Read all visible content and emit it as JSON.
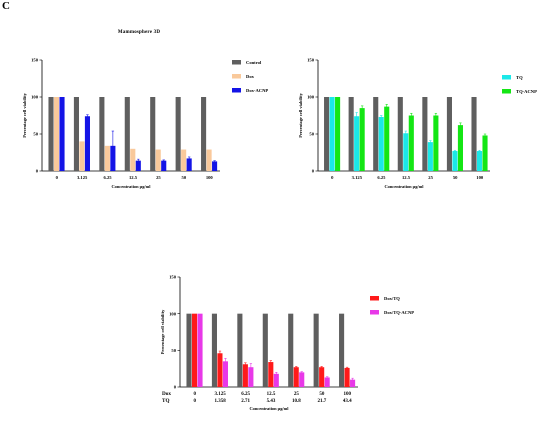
{
  "panel_label": "C",
  "title": "Mammosphere 3D",
  "colors": {
    "Control": "#5f5f5f",
    "Dox": "#f9c99b",
    "Dox-ACNP": "#1414e6",
    "TQ": "#1be8e8",
    "TQ-ACNP": "#14e614",
    "Dox/TQ": "#ff1a1a",
    "Dox/TQ-ACNP": "#e838e8"
  },
  "chart_data": [
    {
      "type": "bar",
      "categories": [
        "0",
        "3.125",
        "6.25",
        "12.5",
        "25",
        "50",
        "100"
      ],
      "ylim": [
        0,
        150
      ],
      "yticks": [
        0,
        50,
        100,
        150
      ],
      "ylabel": "Percentage cell viability",
      "xlabel": "Concentration µg/ml",
      "legend": [
        "Control",
        "Dox",
        "Dox-ACNP"
      ],
      "legend_position": "right",
      "series": [
        {
          "name": "Control",
          "values": [
            100,
            100,
            100,
            100,
            100,
            100,
            100
          ],
          "errors": [
            0,
            0,
            0,
            0,
            0,
            0,
            0
          ]
        },
        {
          "name": "Dox",
          "values": [
            100,
            40,
            34,
            30,
            29,
            29,
            29
          ],
          "errors": [
            0,
            0,
            0,
            0,
            0,
            0,
            0
          ]
        },
        {
          "name": "Dox-ACNP",
          "values": [
            100,
            74,
            34,
            14,
            14,
            17,
            13
          ],
          "errors": [
            0,
            2,
            20,
            2,
            1,
            2,
            1
          ]
        }
      ]
    },
    {
      "type": "bar",
      "categories": [
        "0",
        "3.125",
        "6.25",
        "12.5",
        "25",
        "50",
        "100"
      ],
      "ylim": [
        0,
        150
      ],
      "yticks": [
        0,
        50,
        100,
        150
      ],
      "ylabel": "Percentage cell viability",
      "xlabel": "Concentration µg/ml",
      "legend": [
        "TQ",
        "TQ-ACNP"
      ],
      "legend_position": "right",
      "series": [
        {
          "name": "Control",
          "values": [
            100,
            100,
            100,
            100,
            100,
            100,
            100
          ],
          "errors": [
            0,
            0,
            0,
            0,
            0,
            0,
            0
          ]
        },
        {
          "name": "TQ",
          "values": [
            100,
            74,
            73,
            51,
            39,
            27,
            27
          ],
          "errors": [
            0,
            5,
            2,
            3,
            2,
            1,
            1
          ]
        },
        {
          "name": "TQ-ACNP",
          "values": [
            100,
            85,
            87,
            75,
            75,
            62,
            48
          ],
          "errors": [
            0,
            3,
            3,
            3,
            3,
            3,
            2
          ]
        }
      ]
    },
    {
      "type": "bar",
      "categories": [
        "0",
        "3.125",
        "6.25",
        "12.5",
        "25",
        "50",
        "100"
      ],
      "row_labels": [
        "Dox",
        "TQ"
      ],
      "tick_rows": [
        [
          "0",
          "3.125",
          "6.25",
          "12.5",
          "25",
          "50",
          "100"
        ],
        [
          "0",
          "1.358",
          "2.71",
          "5.43",
          "10.8",
          "21.7",
          "43.4"
        ]
      ],
      "ylim": [
        0,
        150
      ],
      "yticks": [
        0,
        50,
        100,
        150
      ],
      "ylabel": "Percentage cell viability",
      "xlabel": "Concentration µg/ml",
      "legend": [
        "Dox/TQ",
        "Dox/TQ-ACNP"
      ],
      "legend_position": "right",
      "series": [
        {
          "name": "Control",
          "values": [
            100,
            100,
            100,
            100,
            100,
            100,
            100
          ],
          "errors": [
            0,
            0,
            0,
            0,
            0,
            0,
            0
          ]
        },
        {
          "name": "Dox/TQ",
          "values": [
            100,
            46,
            31,
            34,
            27,
            27,
            26
          ],
          "errors": [
            0,
            3,
            2,
            2,
            1,
            1,
            1
          ]
        },
        {
          "name": "Dox/TQ-ACNP",
          "values": [
            100,
            35,
            27,
            18,
            20,
            13,
            10
          ],
          "errors": [
            0,
            4,
            5,
            2,
            1,
            1,
            2
          ]
        }
      ]
    }
  ]
}
